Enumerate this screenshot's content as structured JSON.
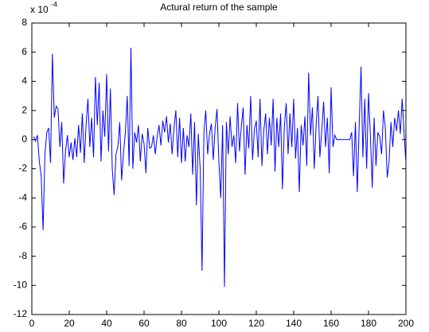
{
  "chart_data": {
    "type": "line",
    "title": "Actural return of the sample",
    "y_multiplier": {
      "base": "x 10",
      "exponent": "-4"
    },
    "xlim": [
      0,
      200
    ],
    "xticks": [
      0,
      20,
      40,
      60,
      80,
      100,
      120,
      140,
      160,
      180,
      200
    ],
    "ylim": [
      -12,
      8
    ],
    "yticks": [
      -12,
      -10,
      -8,
      -6,
      -4,
      -2,
      0,
      2,
      4,
      6,
      8
    ],
    "grid": false,
    "x": [
      1,
      2,
      3,
      4,
      5,
      6,
      7,
      8,
      9,
      10,
      11,
      12,
      13,
      14,
      15,
      16,
      17,
      18,
      19,
      20,
      21,
      22,
      23,
      24,
      25,
      26,
      27,
      28,
      29,
      30,
      31,
      32,
      33,
      34,
      35,
      36,
      37,
      38,
      39,
      40,
      41,
      42,
      43,
      44,
      45,
      46,
      47,
      48,
      49,
      50,
      51,
      52,
      53,
      54,
      55,
      56,
      57,
      58,
      59,
      60,
      61,
      62,
      63,
      64,
      65,
      66,
      67,
      68,
      69,
      70,
      71,
      72,
      73,
      74,
      75,
      76,
      77,
      78,
      79,
      80,
      81,
      82,
      83,
      84,
      85,
      86,
      87,
      88,
      89,
      90,
      91,
      92,
      93,
      94,
      95,
      96,
      97,
      98,
      99,
      100,
      101,
      102,
      103,
      104,
      105,
      106,
      107,
      108,
      109,
      110,
      111,
      112,
      113,
      114,
      115,
      116,
      117,
      118,
      119,
      120,
      121,
      122,
      123,
      124,
      125,
      126,
      127,
      128,
      129,
      130,
      131,
      132,
      133,
      134,
      135,
      136,
      137,
      138,
      139,
      140,
      141,
      142,
      143,
      144,
      145,
      146,
      147,
      148,
      149,
      150,
      151,
      152,
      153,
      154,
      155,
      156,
      157,
      158,
      159,
      160,
      161,
      162,
      163,
      164,
      165,
      166,
      167,
      168,
      169,
      170,
      171,
      172,
      173,
      174,
      175,
      176,
      177,
      178,
      179,
      180,
      181,
      182,
      183,
      184,
      185,
      186,
      187,
      188,
      189,
      190,
      191,
      192,
      193,
      194,
      195,
      196,
      197,
      198,
      199,
      200
    ],
    "series": [
      {
        "color": "#0000ff",
        "values": [
          0.2,
          -0.1,
          0.3,
          -1.5,
          -2.5,
          -6.2,
          -1.0,
          0.5,
          0.8,
          -1.6,
          5.9,
          1.5,
          2.3,
          2.1,
          -0.5,
          1.2,
          -3.0,
          -0.8,
          0.3,
          -1.2,
          -0.2,
          -1.4,
          0.1,
          -1.2,
          1.0,
          -0.9,
          1.8,
          -1.6,
          1.0,
          2.8,
          -0.5,
          1.5,
          -1.2,
          4.3,
          1.0,
          3.9,
          -1.5,
          2.0,
          0.2,
          4.5,
          -0.8,
          3.5,
          -2.0,
          -3.8,
          -1.0,
          -0.5,
          1.2,
          -2.8,
          -0.9,
          0.5,
          3.0,
          -1.8,
          6.3,
          -2.0,
          0.5,
          -0.2,
          1.0,
          -1.5,
          0.4,
          -0.3,
          -2.3,
          0.8,
          -0.6,
          -0.5,
          0.3,
          -1.0,
          0.2,
          1.0,
          -0.4,
          1.3,
          0.5,
          1.6,
          -0.2,
          1.1,
          -1.0,
          0.8,
          2.0,
          -1.2,
          1.5,
          -1.6,
          0.8,
          -1.5,
          0.3,
          -0.5,
          1.8,
          -2.4,
          1.2,
          -4.5,
          0.4,
          -2.0,
          -9.0,
          0.5,
          2.0,
          -1.0,
          0.4,
          1.1,
          -1.4,
          0.8,
          2.1,
          -1.5,
          -4.0,
          1.0,
          -10.1,
          1.2,
          -1.0,
          1.6,
          -0.5,
          0.3,
          -1.6,
          2.5,
          -0.8,
          0.9,
          2.2,
          -2.4,
          1.0,
          -0.6,
          3.0,
          -1.4,
          0.7,
          1.3,
          -1.2,
          2.8,
          -1.8,
          0.6,
          1.8,
          -1.0,
          1.5,
          -0.4,
          2.8,
          -2.2,
          1.5,
          -0.5,
          1.8,
          -3.4,
          0.9,
          2.5,
          -1.0,
          1.8,
          -0.5,
          2.8,
          -1.3,
          0.8,
          -3.6,
          1.0,
          -0.4,
          1.6,
          -1.8,
          4.6,
          0.3,
          2.2,
          -2.0,
          1.0,
          3.0,
          -1.2,
          0.6,
          2.6,
          -0.5,
          1.5,
          -2.3,
          3.6,
          -0.5,
          0.3,
          0,
          0,
          0,
          0,
          0,
          0,
          0,
          0,
          0.5,
          -2.5,
          1.2,
          -3.6,
          0.9,
          5.0,
          -1.2,
          2.8,
          -2.0,
          3.2,
          0.3,
          -3.3,
          1.5,
          -1.8,
          0.5,
          0.2,
          -1.0,
          2.0,
          0.8,
          -2.6,
          -1.5,
          1.2,
          -0.5,
          1.5,
          0.6,
          2.0,
          0.4,
          2.8,
          0.5,
          -1.6
        ]
      }
    ]
  }
}
